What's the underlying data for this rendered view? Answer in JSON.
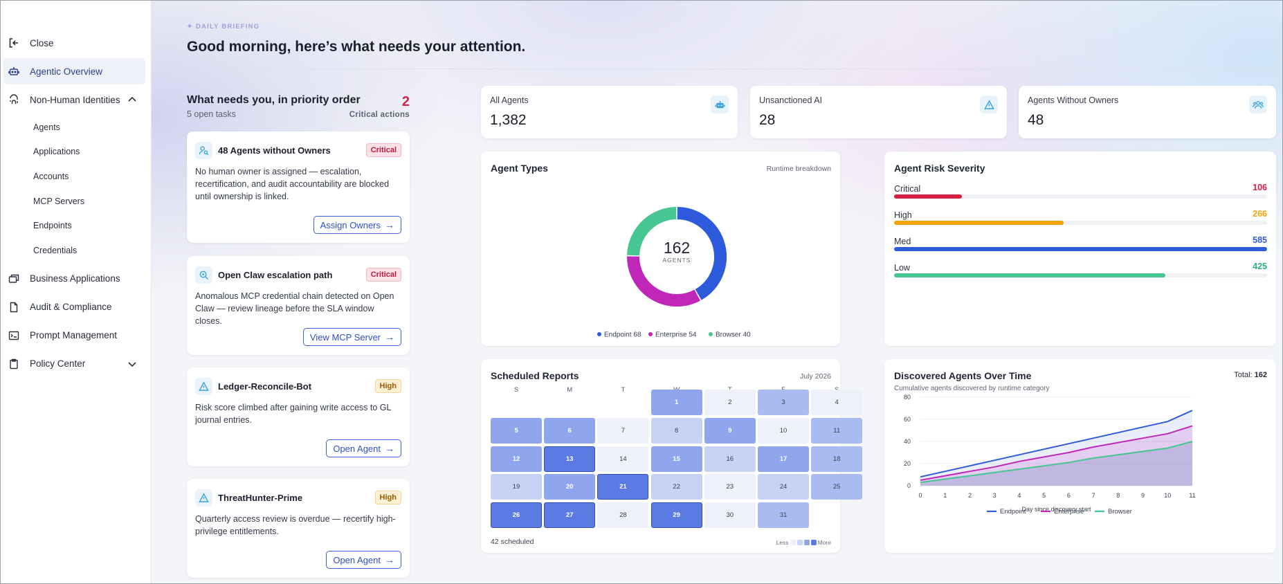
{
  "sidebar": {
    "close": "Close",
    "items": [
      {
        "label": "Agentic Overview",
        "icon": "robot-icon",
        "active": true
      },
      {
        "label": "Non-Human Identities",
        "icon": "fingerprint-icon"
      },
      {
        "label": "Business Applications",
        "icon": "windows-icon"
      },
      {
        "label": "Audit & Compliance",
        "icon": "document-icon"
      },
      {
        "label": "Prompt Management",
        "icon": "terminal-icon"
      },
      {
        "label": "Policy Center",
        "icon": "clipboard-icon"
      }
    ],
    "sub_items": [
      "Agents",
      "Applications",
      "Accounts",
      "MCP Servers",
      "Endpoints",
      "Credentials"
    ]
  },
  "header": {
    "eyebrow": "DAILY BRIEFING",
    "greeting": "Good morning, here’s what needs your attention."
  },
  "priority": {
    "title": "What needs you, in priority order",
    "subtitle": "5 open tasks",
    "count": "2",
    "count_label": "Critical actions",
    "tasks": [
      {
        "title": "48 Agents without Owners",
        "badge": "Critical",
        "body": "No human owner is assigned — escalation, recertification, and audit accountability are blocked until ownership is linked.",
        "action": "Assign Owners",
        "icon": "user-search-icon"
      },
      {
        "title": "Open Claw escalation path",
        "badge": "Critical",
        "body": "Anomalous MCP credential chain detected on Open Claw — review lineage before the SLA window closes.",
        "action": "View MCP Server",
        "icon": "magnify-icon"
      },
      {
        "title": "Ledger-Reconcile-Bot",
        "badge": "High",
        "body": "Risk score climbed after gaining write access to GL journal entries.",
        "action": "Open Agent",
        "icon": "warning-icon"
      },
      {
        "title": "ThreatHunter-Prime",
        "badge": "High",
        "body": "Quarterly access review is overdue — recertify high-privilege entitlements.",
        "action": "Open Agent",
        "icon": "warning-icon"
      }
    ]
  },
  "stats": [
    {
      "label": "All Agents",
      "value": "1,382",
      "icon": "robot-icon"
    },
    {
      "label": "Unsanctioned AI",
      "value": "28",
      "icon": "warning-icon"
    },
    {
      "label": "Agents Without Owners",
      "value": "48",
      "icon": "users-icon"
    }
  ],
  "agent_types": {
    "title": "Agent Types",
    "meta": "Runtime breakdown",
    "total": "162",
    "total_label": "AGENTS",
    "legend": [
      "Endpoint 68",
      "Enterprise 54",
      "Browser 40"
    ]
  },
  "risk": {
    "title": "Agent Risk Severity",
    "max": 585,
    "rows": [
      {
        "label": "Critical",
        "value": 106,
        "color": "#d61f45"
      },
      {
        "label": "High",
        "value": 266,
        "color": "#f5a20c"
      },
      {
        "label": "Med",
        "value": 585,
        "color": "#2e5bdc"
      },
      {
        "label": "Low",
        "value": 425,
        "color": "#46c690"
      }
    ]
  },
  "calendar": {
    "title": "Scheduled Reports",
    "month": "July 2026",
    "days_of_week": [
      "S",
      "M",
      "T",
      "W",
      "T",
      "F",
      "S"
    ],
    "start_offset": 3,
    "intensity": [
      3,
      0,
      2,
      0,
      3,
      3,
      0,
      1,
      3,
      0,
      2,
      3,
      4,
      0,
      3,
      1,
      3,
      2,
      1,
      3,
      4,
      1,
      0,
      1,
      2,
      4,
      4,
      0,
      4,
      0,
      2
    ],
    "footer": "42 scheduled",
    "legend_less": "Less",
    "legend_more": "More"
  },
  "chart_data": {
    "type": "area",
    "title": "Discovered Agents Over Time",
    "subtitle": "Cumulative agents discovered by runtime category",
    "total_label": "Total: ",
    "total_value": "162",
    "xlabel": "Day since discovery start",
    "ylabel": "",
    "x": [
      0,
      1,
      2,
      3,
      4,
      5,
      6,
      7,
      8,
      9,
      10,
      11
    ],
    "ylim": [
      0,
      80
    ],
    "yticks": [
      0,
      20,
      40,
      60,
      80
    ],
    "series": [
      {
        "name": "Endpoint",
        "color": "#2e5bdc",
        "values": [
          8,
          13,
          18,
          23,
          28,
          33,
          38,
          43,
          48,
          53,
          58,
          68
        ]
      },
      {
        "name": "Enterprise",
        "color": "#c026b8",
        "values": [
          5,
          9,
          13,
          17,
          22,
          26,
          30,
          35,
          39,
          43,
          47,
          54
        ]
      },
      {
        "name": "Browser",
        "color": "#46c690",
        "values": [
          3,
          6,
          9,
          12,
          15,
          18,
          21,
          25,
          28,
          31,
          34,
          40
        ]
      }
    ]
  },
  "donut_data": {
    "type": "pie",
    "categories": [
      "Endpoint",
      "Enterprise",
      "Browser"
    ],
    "values": [
      68,
      54,
      40
    ],
    "colors": [
      "#2e5bdc",
      "#c026b8",
      "#46c690"
    ]
  }
}
